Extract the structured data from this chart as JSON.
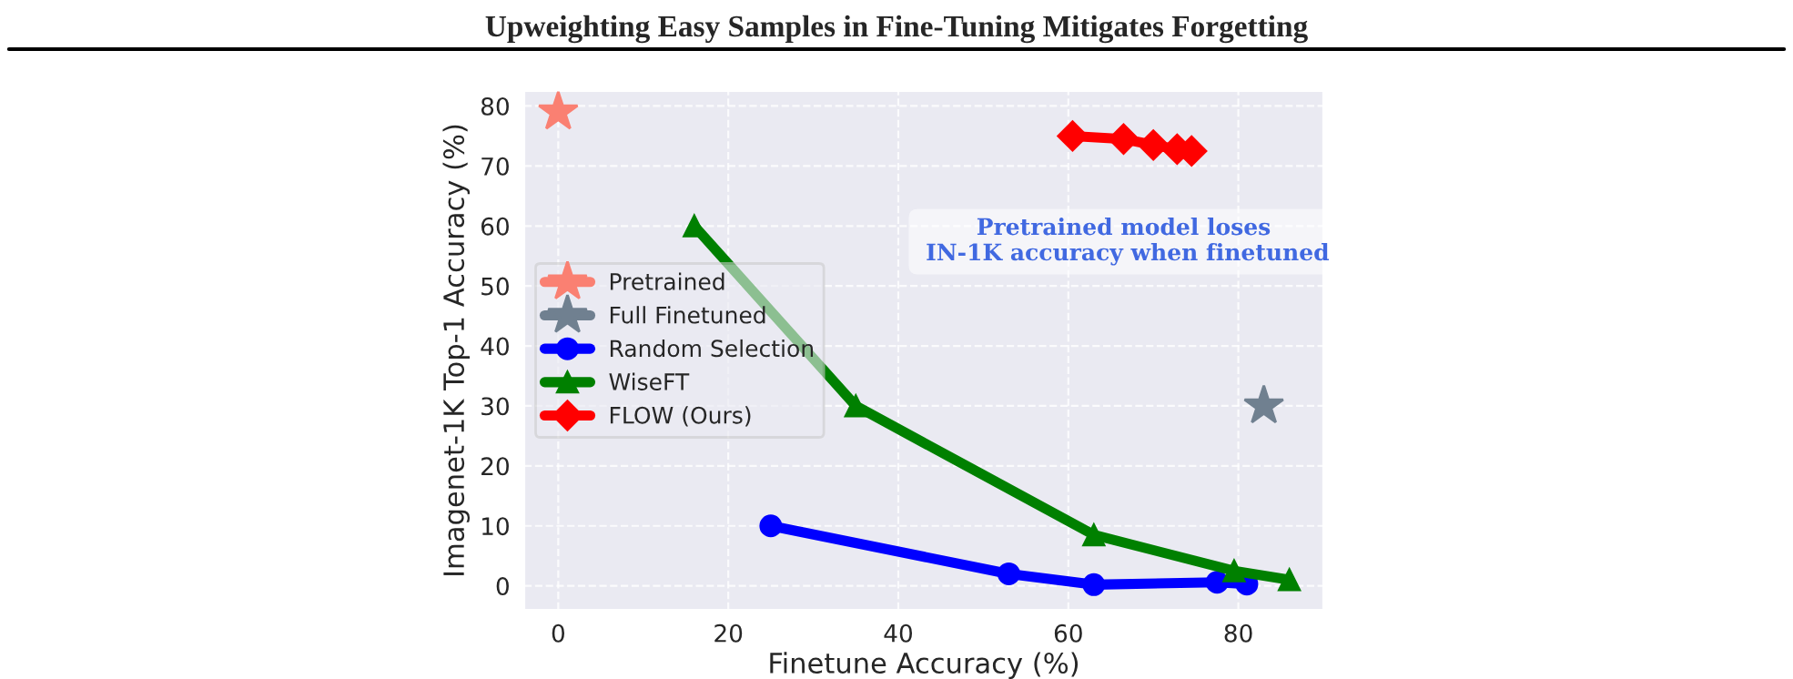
{
  "chart_data": {
    "type": "line",
    "title": "Upweighting Easy Samples in Fine-Tuning Mitigates Forgetting",
    "xlabel": "Finetune Accuracy (%)",
    "ylabel": "Imagenet-1K Top-1 Accuracy (%)",
    "annotations": [
      "Pretrained model loses\n IN-1K accuracy when finetuned"
    ],
    "series": [
      {
        "name": "Pretrained",
        "type": "scatter",
        "marker": "star",
        "color": "#fa8072",
        "x": [
          0
        ],
        "values": [
          79
        ]
      },
      {
        "name": "Full Finetuned",
        "type": "scatter",
        "marker": "star",
        "color": "#708090",
        "x": [
          83
        ],
        "values": [
          30
        ]
      },
      {
        "name": "Random Selection",
        "marker": "circle",
        "color": "#0000ff",
        "x": [
          25,
          53,
          63,
          77.5,
          81
        ],
        "values": [
          10,
          2,
          0.2,
          0.6,
          0.3
        ]
      },
      {
        "name": "WiseFT",
        "marker": "triangle",
        "color": "#008000",
        "x": [
          16,
          35,
          63,
          79.5,
          86
        ],
        "values": [
          60,
          30,
          8.5,
          2.5,
          1
        ]
      },
      {
        "name": "FLOW (Ours)",
        "marker": "diamond",
        "color": "#ff0000",
        "x": [
          60.5,
          66.5,
          70,
          72.8,
          74.5
        ],
        "values": [
          75,
          74.5,
          73.5,
          72.8,
          72.5
        ]
      }
    ],
    "xlim": [
      -4,
      90
    ],
    "ylim": [
      -4,
      82.5
    ],
    "xticks": [
      0,
      20,
      40,
      60,
      80
    ],
    "yticks": [
      0,
      10,
      20,
      30,
      40,
      50,
      60,
      70,
      80
    ],
    "grid": true,
    "legend": "center left"
  }
}
